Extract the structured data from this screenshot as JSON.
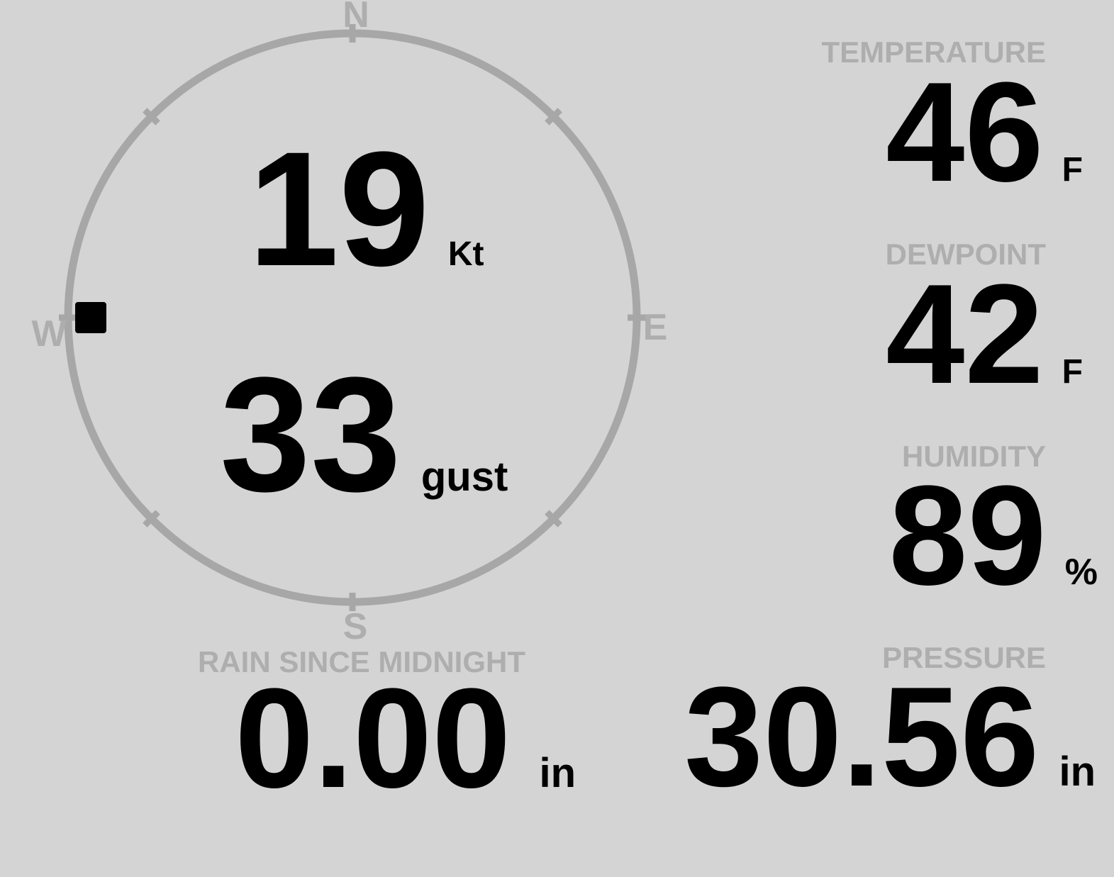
{
  "colors": {
    "background": "#d4d4d4",
    "ring": "#a7a7a7",
    "muted": "#aeaeae",
    "value": "#000000"
  },
  "wind": {
    "speed": "19",
    "speed_unit": "Kt",
    "gust": "33",
    "gust_unit": "gust",
    "direction_deg": 270,
    "cardinals": {
      "north": "N",
      "east": "E",
      "south": "S",
      "west": "W"
    }
  },
  "metrics": {
    "temperature": {
      "label": "TEMPERATURE",
      "value": "46",
      "unit": "F"
    },
    "dewpoint": {
      "label": "DEWPOINT",
      "value": "42",
      "unit": "F"
    },
    "humidity": {
      "label": "HUMIDITY",
      "value": "89",
      "unit": "%"
    },
    "rain": {
      "label": "RAIN SINCE MIDNIGHT",
      "value": "0.00",
      "unit": "in"
    },
    "pressure": {
      "label": "PRESSURE",
      "value": "30.56",
      "unit": "in"
    }
  }
}
